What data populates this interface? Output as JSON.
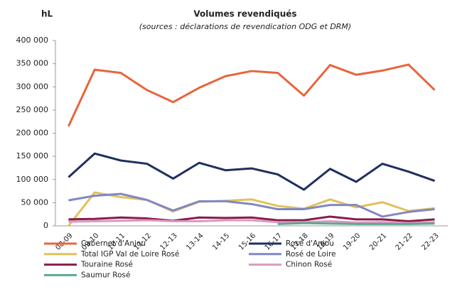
{
  "chart_data": {
    "type": "line",
    "title": "Volumes revendiqués",
    "subtitle": "(sources : déclarations de revendication ODG et DRM)",
    "y_label": "hL",
    "categories": [
      "08-09",
      "09-10",
      "10-11",
      "11-12",
      "12-13",
      "13-14",
      "14-15",
      "15-16",
      "16-17",
      "17-18",
      "18-19",
      "19-20",
      "20-21",
      "21-22",
      "22-23"
    ],
    "series": [
      {
        "name": "Cabernet d'Anjou",
        "color": "#e8643c",
        "values": [
          215000,
          337000,
          330000,
          293000,
          267000,
          298000,
          323000,
          334000,
          330000,
          281000,
          347000,
          326000,
          335000,
          348000,
          293000
        ]
      },
      {
        "name": "Rosé d'Anjou",
        "color": "#1f2f5e",
        "values": [
          105000,
          156000,
          141000,
          134000,
          102000,
          136000,
          120000,
          124000,
          111000,
          78000,
          123000,
          95000,
          134000,
          117000,
          97000
        ]
      },
      {
        "name": "Total IGP Val de Loire Rosé",
        "color": "#e3c057",
        "values": [
          0,
          72000,
          62000,
          56000,
          31000,
          52000,
          54000,
          57000,
          43000,
          37000,
          57000,
          40000,
          51000,
          32000,
          38000
        ]
      },
      {
        "name": "Rosé de Loire",
        "color": "#8087c6",
        "values": [
          55000,
          65000,
          69000,
          56000,
          33000,
          53000,
          53000,
          47000,
          36000,
          36000,
          45000,
          45000,
          20000,
          30000,
          36000
        ]
      },
      {
        "name": "Touraine Rosé",
        "color": "#8b1a4a",
        "values": [
          14000,
          15000,
          18000,
          16000,
          11000,
          18000,
          17000,
          18000,
          12000,
          12000,
          20000,
          14000,
          14000,
          10000,
          14000
        ]
      },
      {
        "name": "Chinon Rosé",
        "color": "#d99ac4",
        "values": [
          9000,
          10000,
          11000,
          12000,
          10000,
          10000,
          12000,
          12000,
          8000,
          8000,
          10000,
          7000,
          8000,
          6000,
          8000
        ]
      },
      {
        "name": "Saumur Rosé",
        "color": "#5fa88b",
        "values": [
          null,
          null,
          null,
          null,
          null,
          null,
          null,
          null,
          4000,
          6000,
          5000,
          4000,
          4000,
          4000,
          5000
        ]
      }
    ],
    "ylim": [
      0,
      400000
    ],
    "yticks": [
      0,
      {
        "value": 50000,
        "label": "50 000"
      },
      {
        "value": 100000,
        "label": "100 000"
      },
      {
        "value": 150000,
        "label": "150 000"
      },
      {
        "value": 200000,
        "label": "200 000"
      },
      {
        "value": 250000,
        "label": "250 000"
      },
      {
        "value": 300000,
        "label": "300 000"
      },
      {
        "value": 350000,
        "label": "350 000"
      },
      {
        "value": 400000,
        "label": "400 000"
      }
    ],
    "grid": false
  }
}
